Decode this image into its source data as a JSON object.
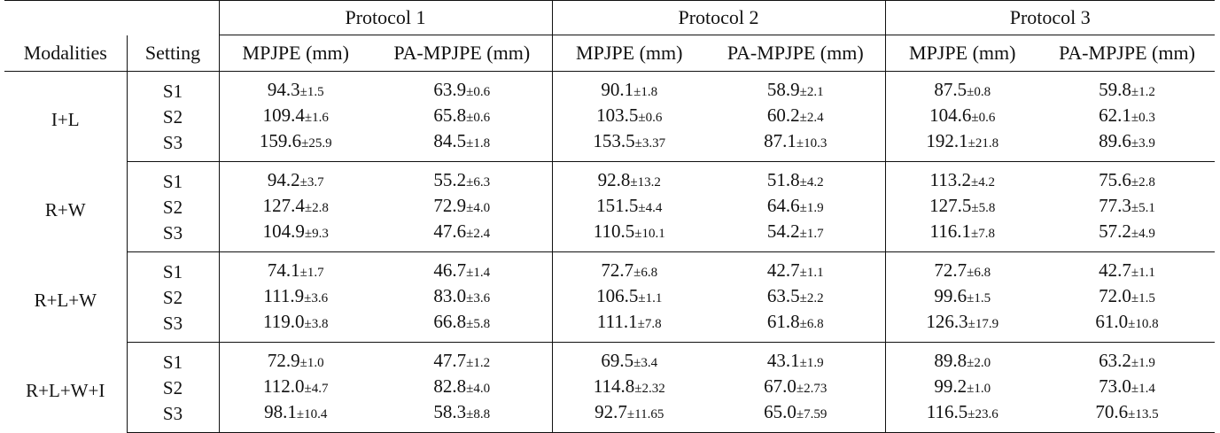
{
  "header": {
    "protocols": [
      "Protocol 1",
      "Protocol 2",
      "Protocol 3"
    ],
    "columns": [
      "Modalities",
      "Setting",
      "MPJPE (mm)",
      "PA-MPJPE (mm)",
      "MPJPE (mm)",
      "PA-MPJPE (mm)",
      "MPJPE (mm)",
      "PA-MPJPE (mm)"
    ]
  },
  "groups": [
    {
      "modality": "I+L",
      "rows": [
        {
          "setting": "S1",
          "vals": [
            [
              "94.3",
              "±1.5"
            ],
            [
              "63.9",
              "±0.6"
            ],
            [
              "90.1",
              "±1.8"
            ],
            [
              "58.9",
              "±2.1"
            ],
            [
              "87.5",
              "±0.8"
            ],
            [
              "59.8",
              "±1.2"
            ]
          ]
        },
        {
          "setting": "S2",
          "vals": [
            [
              "109.4",
              "±1.6"
            ],
            [
              "65.8",
              "±0.6"
            ],
            [
              "103.5",
              "±0.6"
            ],
            [
              "60.2",
              "±2.4"
            ],
            [
              "104.6",
              "±0.6"
            ],
            [
              "62.1",
              "±0.3"
            ]
          ]
        },
        {
          "setting": "S3",
          "vals": [
            [
              "159.6",
              "±25.9"
            ],
            [
              "84.5",
              "±1.8"
            ],
            [
              "153.5",
              "±3.37"
            ],
            [
              "87.1",
              "±10.3"
            ],
            [
              "192.1",
              "±21.8"
            ],
            [
              "89.6",
              "±3.9"
            ]
          ]
        }
      ]
    },
    {
      "modality": "R+W",
      "rows": [
        {
          "setting": "S1",
          "vals": [
            [
              "94.2",
              "±3.7"
            ],
            [
              "55.2",
              "±6.3"
            ],
            [
              "92.8",
              "±13.2"
            ],
            [
              "51.8",
              "±4.2"
            ],
            [
              "113.2",
              "±4.2"
            ],
            [
              "75.6",
              "±2.8"
            ]
          ]
        },
        {
          "setting": "S2",
          "vals": [
            [
              "127.4",
              "±2.8"
            ],
            [
              "72.9",
              "±4.0"
            ],
            [
              "151.5",
              "±4.4"
            ],
            [
              "64.6",
              "±1.9"
            ],
            [
              "127.5",
              "±5.8"
            ],
            [
              "77.3",
              "±5.1"
            ]
          ]
        },
        {
          "setting": "S3",
          "vals": [
            [
              "104.9",
              "±9.3"
            ],
            [
              "47.6",
              "±2.4"
            ],
            [
              "110.5",
              "±10.1"
            ],
            [
              "54.2",
              "±1.7"
            ],
            [
              "116.1",
              "±7.8"
            ],
            [
              "57.2",
              "±4.9"
            ]
          ]
        }
      ]
    },
    {
      "modality": "R+L+W",
      "rows": [
        {
          "setting": "S1",
          "vals": [
            [
              "74.1",
              "±1.7"
            ],
            [
              "46.7",
              "±1.4"
            ],
            [
              "72.7",
              "±6.8"
            ],
            [
              "42.7",
              "±1.1"
            ],
            [
              "72.7",
              "±6.8"
            ],
            [
              "42.7",
              "±1.1"
            ]
          ]
        },
        {
          "setting": "S2",
          "vals": [
            [
              "111.9",
              "±3.6"
            ],
            [
              "83.0",
              "±3.6"
            ],
            [
              "106.5",
              "±1.1"
            ],
            [
              "63.5",
              "±2.2"
            ],
            [
              "99.6",
              "±1.5"
            ],
            [
              "72.0",
              "±1.5"
            ]
          ]
        },
        {
          "setting": "S3",
          "vals": [
            [
              "119.0",
              "±3.8"
            ],
            [
              "66.8",
              "±5.8"
            ],
            [
              "111.1",
              "±7.8"
            ],
            [
              "61.8",
              "±6.8"
            ],
            [
              "126.3",
              "±17.9"
            ],
            [
              "61.0",
              "±10.8"
            ]
          ]
        }
      ]
    },
    {
      "modality": "R+L+W+I",
      "rows": [
        {
          "setting": "S1",
          "vals": [
            [
              "72.9",
              "±1.0"
            ],
            [
              "47.7",
              "±1.2"
            ],
            [
              "69.5",
              "±3.4"
            ],
            [
              "43.1",
              "±1.9"
            ],
            [
              "89.8",
              "±2.0"
            ],
            [
              "63.2",
              "±1.9"
            ]
          ]
        },
        {
          "setting": "S2",
          "vals": [
            [
              "112.0",
              "±4.7"
            ],
            [
              "82.8",
              "±4.0"
            ],
            [
              "114.8",
              "±2.32"
            ],
            [
              "67.0",
              "±2.73"
            ],
            [
              "99.2",
              "±1.0"
            ],
            [
              "73.0",
              "±1.4"
            ]
          ]
        },
        {
          "setting": "S3",
          "vals": [
            [
              "98.1",
              "±10.4"
            ],
            [
              "58.3",
              "±8.8"
            ],
            [
              "92.7",
              "±11.65"
            ],
            [
              "65.0",
              "±7.59"
            ],
            [
              "116.5",
              "±23.6"
            ],
            [
              "70.6",
              "±13.5"
            ]
          ]
        }
      ]
    }
  ]
}
